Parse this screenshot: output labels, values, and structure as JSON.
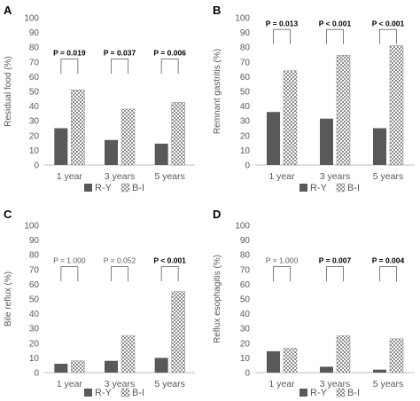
{
  "panels": [
    {
      "letter": "A"
    },
    {
      "letter": "B"
    },
    {
      "letter": "C"
    },
    {
      "letter": "D"
    }
  ],
  "colors": {
    "ry": "#595959",
    "bi_pattern_fg": "#8c8c8c",
    "bi_pattern_bg": "#ffffff",
    "bracket": "#808080",
    "axis": "#bfbfbf",
    "text": "#595959"
  },
  "chart_data": [
    {
      "type": "bar",
      "panel": "A",
      "ylabel": "Residual food (%)",
      "ylim": [
        0,
        100
      ],
      "yticks": [
        0,
        10,
        20,
        30,
        40,
        50,
        60,
        70,
        80,
        90,
        100
      ],
      "categories": [
        "1 year",
        "3 years",
        "5 years"
      ],
      "series": [
        {
          "name": "R-Y",
          "values": [
            25,
            17,
            14.5
          ]
        },
        {
          "name": "B-I",
          "values": [
            51,
            38,
            42.5
          ]
        }
      ],
      "annotations": [
        {
          "label": "P = 0.019",
          "bold": true
        },
        {
          "label": "P = 0.037",
          "bold": true
        },
        {
          "label": "P = 0.006",
          "bold": true
        }
      ],
      "bracket_top": 72,
      "legend": "bottom"
    },
    {
      "type": "bar",
      "panel": "B",
      "ylabel": "Remnant gastritis (%)",
      "ylim": [
        0,
        100
      ],
      "yticks": [
        0,
        10,
        20,
        30,
        40,
        50,
        60,
        70,
        80,
        90,
        100
      ],
      "categories": [
        "1 year",
        "3 years",
        "5 years"
      ],
      "series": [
        {
          "name": "R-Y",
          "values": [
            36,
            31.5,
            25
          ]
        },
        {
          "name": "B-I",
          "values": [
            64,
            74.5,
            81
          ]
        }
      ],
      "annotations": [
        {
          "label": "P = 0.013",
          "bold": true
        },
        {
          "label": "P < 0.001",
          "bold": true
        },
        {
          "label": "P < 0.001",
          "bold": true
        }
      ],
      "bracket_top": 92,
      "legend": "bottom"
    },
    {
      "type": "bar",
      "panel": "C",
      "ylabel": "Bile reflux (%)",
      "ylim": [
        0,
        100
      ],
      "yticks": [
        0,
        10,
        20,
        30,
        40,
        50,
        60,
        70,
        80,
        90,
        100
      ],
      "categories": [
        "1 year",
        "3 years",
        "5 years"
      ],
      "series": [
        {
          "name": "R-Y",
          "values": [
            6,
            8,
            10
          ]
        },
        {
          "name": "B-I",
          "values": [
            8,
            25,
            55
          ]
        }
      ],
      "annotations": [
        {
          "label": "P = 1.000",
          "bold": false
        },
        {
          "label": "P = 0.052",
          "bold": false
        },
        {
          "label": "P < 0.001",
          "bold": true
        }
      ],
      "bracket_top": 72,
      "legend": "bottom"
    },
    {
      "type": "bar",
      "panel": "D",
      "ylabel": "Reflux esophagitis (%)",
      "ylim": [
        0,
        100
      ],
      "yticks": [
        0,
        10,
        20,
        30,
        40,
        50,
        60,
        70,
        80,
        90,
        100
      ],
      "categories": [
        "1 year",
        "3 years",
        "5 years"
      ],
      "series": [
        {
          "name": "R-Y",
          "values": [
            14.5,
            4,
            2
          ]
        },
        {
          "name": "B-I",
          "values": [
            16.5,
            25,
            23
          ]
        }
      ],
      "annotations": [
        {
          "label": "P = 1.000",
          "bold": false
        },
        {
          "label": "P = 0.007",
          "bold": true
        },
        {
          "label": "P = 0.004",
          "bold": true
        }
      ],
      "bracket_top": 72,
      "legend": "bottom"
    }
  ]
}
